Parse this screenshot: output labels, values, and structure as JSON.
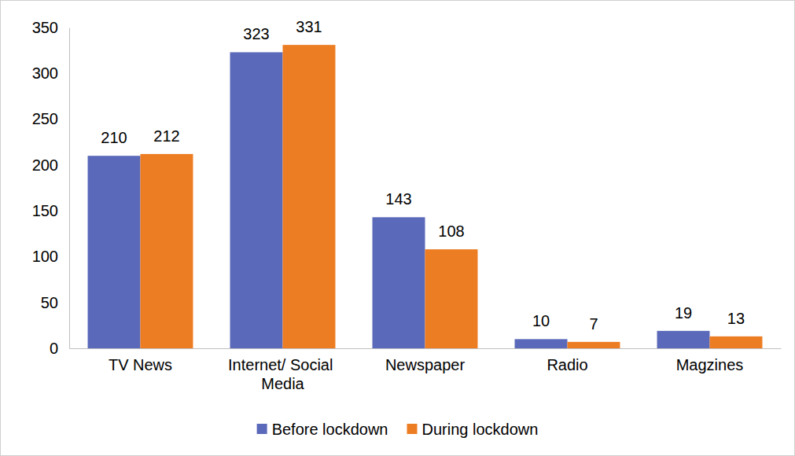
{
  "chart_data": {
    "type": "bar",
    "categories": [
      "TV News",
      "Internet/ Social Media",
      "Newspaper",
      "Radio",
      "Magzines"
    ],
    "series": [
      {
        "name": "Before lockdown",
        "color": "#5a69b9",
        "values": [
          210,
          323,
          143,
          10,
          19
        ]
      },
      {
        "name": "During lockdown",
        "color": "#ed7d22",
        "values": [
          212,
          331,
          108,
          7,
          13
        ]
      }
    ],
    "ylim": [
      0,
      350
    ],
    "yticks": [
      0,
      50,
      100,
      150,
      200,
      250,
      300,
      350
    ],
    "grid": false,
    "data_labels": true,
    "legend": "bottom"
  }
}
